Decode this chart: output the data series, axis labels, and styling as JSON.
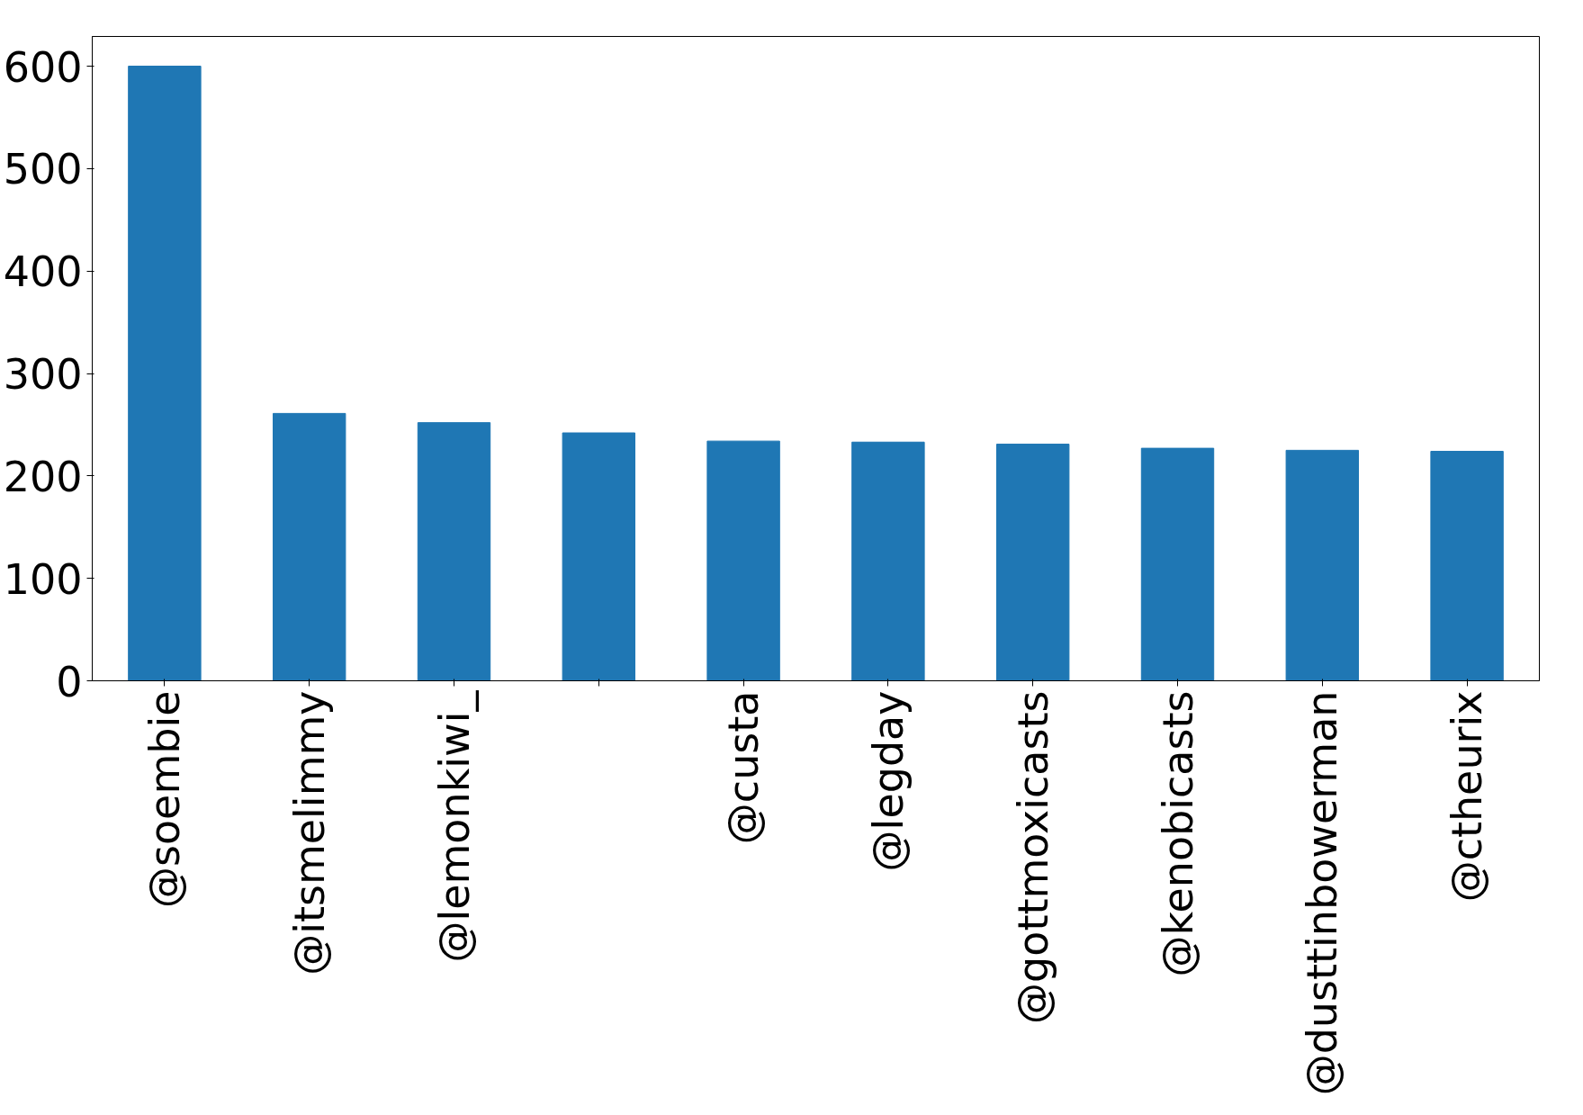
{
  "chart_data": {
    "type": "bar",
    "categories": [
      "@soembie",
      "@itsmelimmy",
      "@lemonkiwi_",
      null,
      "@custa",
      "@legday",
      "@gottmoxicasts",
      "@kenobicasts",
      "@dusttinbowerman",
      "@ctheurix"
    ],
    "values": [
      600,
      261,
      252,
      242,
      234,
      233,
      231,
      227,
      225,
      224
    ],
    "color": "#1f77b4",
    "ylim": [
      0,
      629
    ],
    "yticks": [
      0,
      100,
      200,
      300,
      400,
      500,
      600
    ],
    "grid": false
  }
}
